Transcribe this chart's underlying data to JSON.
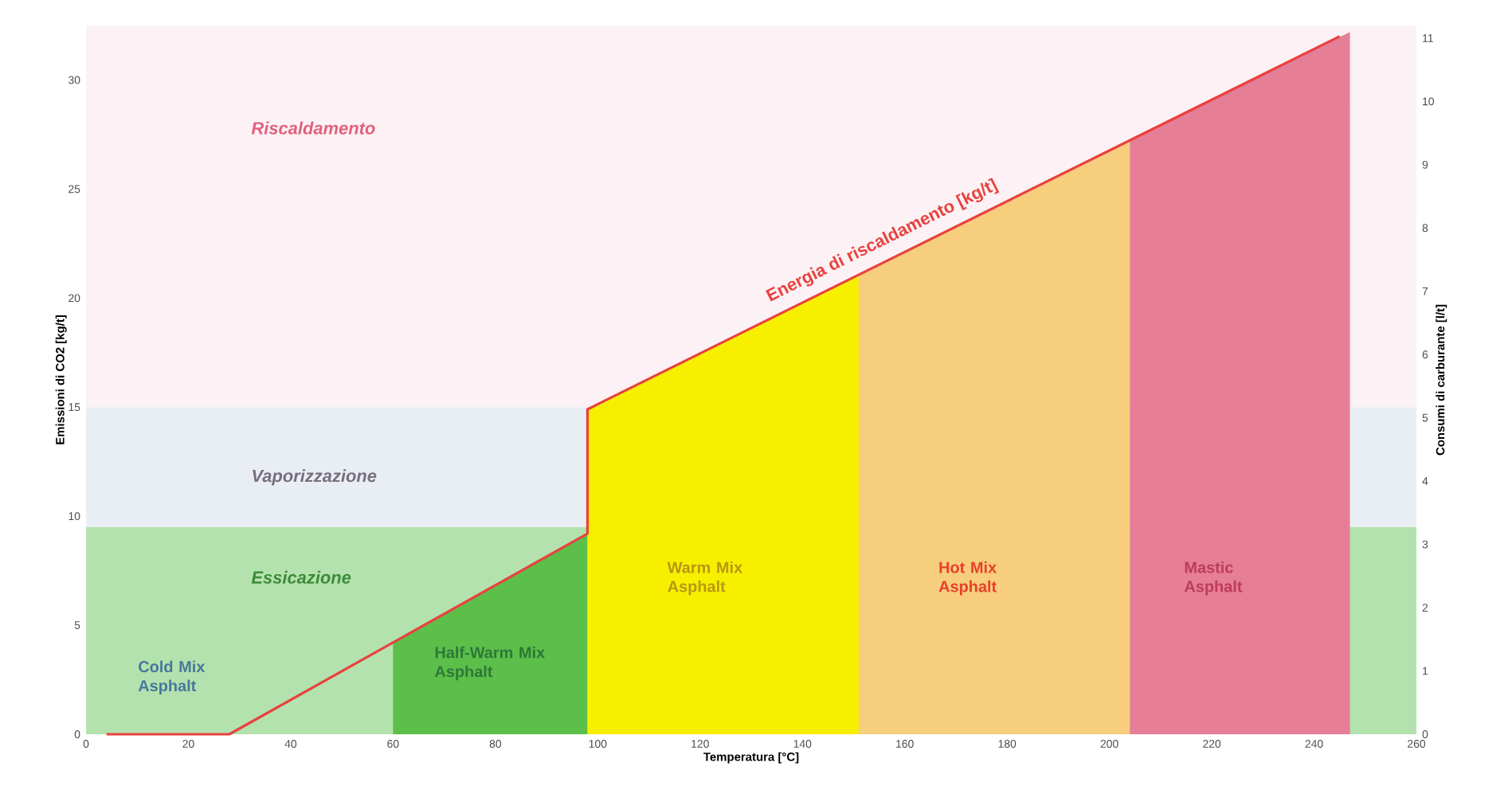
{
  "chart_data": {
    "type": "line",
    "xlabel": "Temperatura [°C]",
    "ylabel": "Emissioni di CO2 [kg/t]",
    "y2label": "Consumi di carburante [l/t]",
    "xlim": [
      0,
      260
    ],
    "xticks": [
      0,
      20,
      40,
      60,
      80,
      100,
      120,
      140,
      160,
      180,
      200,
      220,
      240,
      260
    ],
    "ylim": [
      0,
      32.5
    ],
    "yticks": [
      0,
      5,
      10,
      15,
      20,
      25,
      30
    ],
    "y2lim": [
      0,
      11.2
    ],
    "y2ticks": [
      0,
      1,
      2,
      3,
      4,
      5,
      6,
      7,
      8,
      9,
      10,
      11
    ],
    "bands": [
      {
        "axis": "y",
        "from": 0,
        "to": 9.5,
        "label": "Essicazione",
        "color": "#b4e2ae"
      },
      {
        "axis": "y",
        "from": 9.5,
        "to": 15,
        "label": "Vaporizzazione",
        "color": "#e9eef4"
      },
      {
        "axis": "y",
        "from": 15,
        "to": 32.5,
        "label": "Riscaldamento",
        "color": "#fcf1f4"
      }
    ],
    "series": [
      {
        "name": "Half-Warm Mix Asphalt",
        "type": "area",
        "color": "#5cbf4a",
        "x": [
          60,
          98
        ],
        "values": [
          4.2,
          9.2
        ]
      },
      {
        "name": "Warm Mix Asphalt",
        "type": "area",
        "color": "#f6f000",
        "x": [
          98,
          151
        ],
        "values": [
          14.9,
          21.1
        ]
      },
      {
        "name": "Hot Mix Asphalt",
        "type": "area",
        "color": "#f7cd7e",
        "x": [
          151,
          204
        ],
        "values": [
          21.1,
          27.3
        ]
      },
      {
        "name": "Mastic Asphalt",
        "type": "area",
        "color": "#e57e96",
        "x": [
          204,
          247
        ],
        "values": [
          27.3,
          32.2
        ]
      },
      {
        "name": "Energia di riscaldamento [kg/t]",
        "color": "#e8423f",
        "x": [
          4,
          28,
          98,
          98,
          245
        ],
        "values": [
          0,
          0,
          9.2,
          14.9,
          32
        ]
      }
    ],
    "annotations": [
      "Cold Mix Asphalt"
    ]
  }
}
